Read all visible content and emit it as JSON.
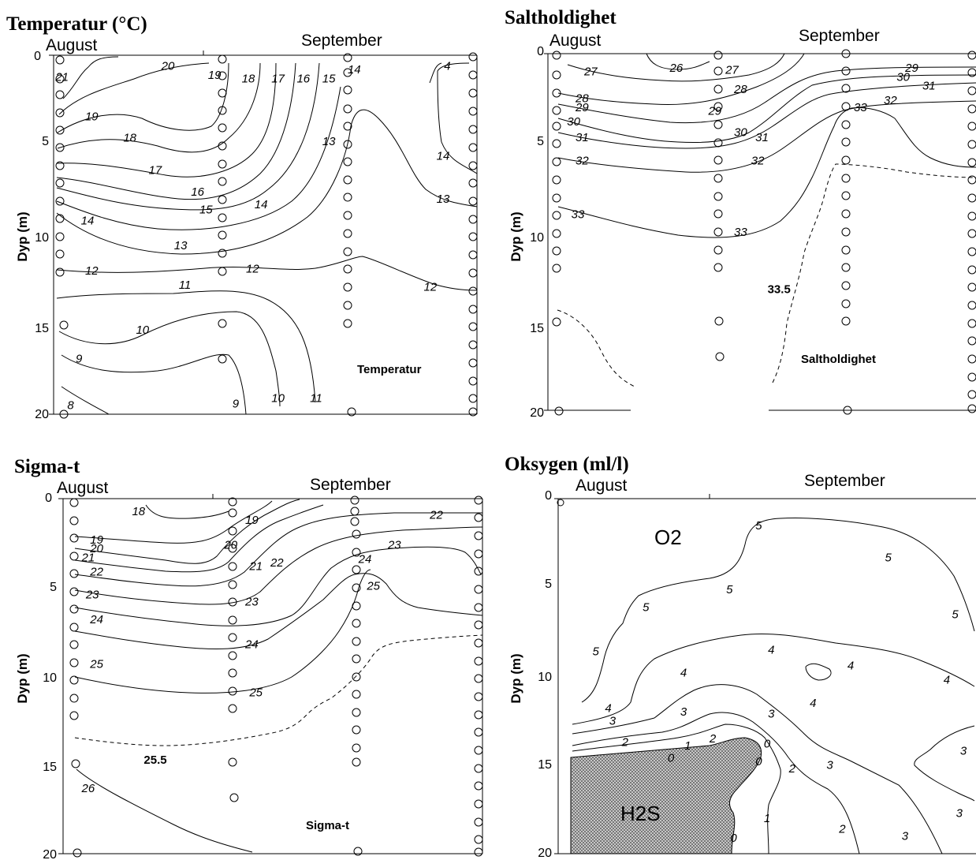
{
  "chart_data": [
    {
      "type": "contour",
      "title": "Temperatur (°C)",
      "inner_label": "Temperatur",
      "months": [
        "August",
        "September"
      ],
      "ylabel": "Dyp (m)",
      "yticks": [
        "0",
        "5",
        "10",
        "15",
        "20"
      ],
      "ylim": [
        0,
        20
      ],
      "contour_levels": [
        "21",
        "20",
        "19",
        "18",
        "17",
        "16",
        "15",
        "14",
        "13",
        "12",
        "11",
        "10",
        "9",
        "8",
        "4"
      ],
      "labels": [
        {
          "text": "21",
          "s": 0.02,
          "d": 1.2
        },
        {
          "text": "20",
          "s": 0.27,
          "d": 0.6
        },
        {
          "text": "19",
          "s": 0.09,
          "d": 3.4
        },
        {
          "text": "18",
          "s": 0.18,
          "d": 4.6
        },
        {
          "text": "17",
          "s": 0.24,
          "d": 6.4
        },
        {
          "text": "16",
          "s": 0.34,
          "d": 7.6
        },
        {
          "text": "15",
          "s": 0.36,
          "d": 8.6
        },
        {
          "text": "14",
          "s": 0.08,
          "d": 9.2
        },
        {
          "text": "14",
          "s": 0.49,
          "d": 8.3
        },
        {
          "text": "13",
          "s": 0.3,
          "d": 10.6
        },
        {
          "text": "13",
          "s": 0.65,
          "d": 4.8
        },
        {
          "text": "12",
          "s": 0.09,
          "d": 12.0
        },
        {
          "text": "12",
          "s": 0.47,
          "d": 11.9
        },
        {
          "text": "12",
          "s": 0.89,
          "d": 12.9
        },
        {
          "text": "11",
          "s": 0.31,
          "d": 12.8
        },
        {
          "text": "10",
          "s": 0.21,
          "d": 15.3
        },
        {
          "text": "9",
          "s": 0.06,
          "d": 16.9
        },
        {
          "text": "8",
          "s": 0.04,
          "d": 19.5
        },
        {
          "text": "13",
          "s": 0.92,
          "d": 8.0
        },
        {
          "text": "14",
          "s": 0.92,
          "d": 5.6
        },
        {
          "text": "4",
          "s": 0.93,
          "d": 0.6
        },
        {
          "text": "19",
          "s": 0.38,
          "d": 1.1
        },
        {
          "text": "18",
          "s": 0.46,
          "d": 1.3
        },
        {
          "text": "17",
          "s": 0.53,
          "d": 1.3
        },
        {
          "text": "16",
          "s": 0.59,
          "d": 1.3
        },
        {
          "text": "15",
          "s": 0.65,
          "d": 1.3
        },
        {
          "text": "14",
          "s": 0.71,
          "d": 0.8
        },
        {
          "text": "9",
          "s": 0.43,
          "d": 19.4
        },
        {
          "text": "10",
          "s": 0.53,
          "d": 19.1
        },
        {
          "text": "11",
          "s": 0.62,
          "d": 19.1
        }
      ]
    },
    {
      "type": "contour",
      "title": "Saltholdighet",
      "inner_label": "Saltholdighet",
      "months": [
        "August",
        "September"
      ],
      "ylabel": "Dyp (m)",
      "yticks": [
        "0",
        "5",
        "10",
        "15",
        "20"
      ],
      "ylim": [
        0,
        20
      ],
      "contour_levels": [
        "26",
        "27",
        "28",
        "29",
        "30",
        "31",
        "32",
        "33",
        "33.5"
      ],
      "labels": [
        {
          "text": "27",
          "s": 0.1,
          "d": 1.0
        },
        {
          "text": "26",
          "s": 0.3,
          "d": 0.8
        },
        {
          "text": "27",
          "s": 0.43,
          "d": 0.9
        },
        {
          "text": "28",
          "s": 0.08,
          "d": 2.5
        },
        {
          "text": "29",
          "s": 0.08,
          "d": 3.0
        },
        {
          "text": "30",
          "s": 0.06,
          "d": 3.8
        },
        {
          "text": "31",
          "s": 0.08,
          "d": 4.7
        },
        {
          "text": "32",
          "s": 0.08,
          "d": 6.0
        },
        {
          "text": "33",
          "s": 0.07,
          "d": 9.0
        },
        {
          "text": "28",
          "s": 0.45,
          "d": 2.0
        },
        {
          "text": "29",
          "s": 0.39,
          "d": 3.2
        },
        {
          "text": "30",
          "s": 0.45,
          "d": 4.4
        },
        {
          "text": "31",
          "s": 0.5,
          "d": 4.7
        },
        {
          "text": "32",
          "s": 0.49,
          "d": 6.0
        },
        {
          "text": "33",
          "s": 0.45,
          "d": 10.0
        },
        {
          "text": "29",
          "s": 0.85,
          "d": 0.8
        },
        {
          "text": "30",
          "s": 0.83,
          "d": 1.3
        },
        {
          "text": "31",
          "s": 0.89,
          "d": 1.8
        },
        {
          "text": "32",
          "s": 0.8,
          "d": 2.6
        },
        {
          "text": "33",
          "s": 0.73,
          "d": 3.0
        }
      ],
      "wide_labels": [
        {
          "text": "33.5",
          "s": 0.54,
          "d": 13.2
        }
      ]
    },
    {
      "type": "contour",
      "title": "Sigma-t",
      "inner_label": "Sigma-t",
      "months": [
        "August",
        "September"
      ],
      "ylabel": "Dyp (m)",
      "yticks": [
        "0",
        "5",
        "10",
        "15",
        "20"
      ],
      "ylim": [
        0,
        20
      ],
      "contour_levels": [
        "18",
        "19",
        "20",
        "21",
        "22",
        "23",
        "24",
        "25",
        "25.5",
        "26"
      ],
      "labels": [
        {
          "text": "18",
          "s": 0.18,
          "d": 0.7
        },
        {
          "text": "19",
          "s": 0.08,
          "d": 2.3
        },
        {
          "text": "20",
          "s": 0.08,
          "d": 2.8
        },
        {
          "text": "21",
          "s": 0.06,
          "d": 3.3
        },
        {
          "text": "22",
          "s": 0.08,
          "d": 4.1
        },
        {
          "text": "23",
          "s": 0.07,
          "d": 5.4
        },
        {
          "text": "24",
          "s": 0.08,
          "d": 6.8
        },
        {
          "text": "25",
          "s": 0.08,
          "d": 9.3
        },
        {
          "text": "26",
          "s": 0.06,
          "d": 16.3
        },
        {
          "text": "19",
          "s": 0.45,
          "d": 1.2
        },
        {
          "text": "20",
          "s": 0.4,
          "d": 2.6
        },
        {
          "text": "21",
          "s": 0.46,
          "d": 3.8
        },
        {
          "text": "22",
          "s": 0.51,
          "d": 3.6
        },
        {
          "text": "23",
          "s": 0.45,
          "d": 5.8
        },
        {
          "text": "24",
          "s": 0.45,
          "d": 8.2
        },
        {
          "text": "25",
          "s": 0.46,
          "d": 10.9
        },
        {
          "text": "22",
          "s": 0.89,
          "d": 0.9
        },
        {
          "text": "23",
          "s": 0.79,
          "d": 2.6
        },
        {
          "text": "24",
          "s": 0.72,
          "d": 3.4
        },
        {
          "text": "25",
          "s": 0.74,
          "d": 4.9
        }
      ],
      "wide_labels": [
        {
          "text": "25.5",
          "s": 0.22,
          "d": 14.7
        }
      ]
    },
    {
      "type": "contour",
      "title": "Oksygen (ml/l)",
      "months": [
        "August",
        "September"
      ],
      "ylabel": "Dyp (m)",
      "yticks": [
        "0",
        "5",
        "10",
        "15",
        "20"
      ],
      "ylim": [
        0,
        20
      ],
      "contour_levels": [
        "5",
        "4",
        "3",
        "2",
        "1",
        "0"
      ],
      "regions": [
        "O2",
        "H2S"
      ],
      "labels": [
        {
          "text": "5",
          "s": 0.48,
          "d": 1.5
        },
        {
          "text": "5",
          "s": 0.79,
          "d": 3.3
        },
        {
          "text": "5",
          "s": 0.95,
          "d": 6.5
        },
        {
          "text": "5",
          "s": 0.41,
          "d": 5.1
        },
        {
          "text": "5",
          "s": 0.21,
          "d": 6.1
        },
        {
          "text": "5",
          "s": 0.09,
          "d": 8.6
        },
        {
          "text": "4",
          "s": 0.51,
          "d": 8.5
        },
        {
          "text": "4",
          "s": 0.7,
          "d": 9.4
        },
        {
          "text": "4",
          "s": 0.93,
          "d": 10.2
        },
        {
          "text": "4",
          "s": 0.3,
          "d": 9.8
        },
        {
          "text": "4",
          "s": 0.12,
          "d": 11.8
        },
        {
          "text": "4",
          "s": 0.61,
          "d": 11.5
        },
        {
          "text": "3",
          "s": 0.13,
          "d": 12.5
        },
        {
          "text": "3",
          "s": 0.3,
          "d": 12.0
        },
        {
          "text": "3",
          "s": 0.51,
          "d": 12.1
        },
        {
          "text": "3",
          "s": 0.65,
          "d": 15.0
        },
        {
          "text": "3",
          "s": 0.83,
          "d": 19.0
        },
        {
          "text": "3",
          "s": 0.97,
          "d": 14.2
        },
        {
          "text": "3",
          "s": 0.96,
          "d": 17.7
        },
        {
          "text": "2",
          "s": 0.16,
          "d": 13.7
        },
        {
          "text": "2",
          "s": 0.37,
          "d": 13.5
        },
        {
          "text": "2",
          "s": 0.56,
          "d": 15.2
        },
        {
          "text": "2",
          "s": 0.68,
          "d": 18.6
        },
        {
          "text": "1",
          "s": 0.31,
          "d": 13.9
        },
        {
          "text": "1",
          "s": 0.5,
          "d": 18.0
        },
        {
          "text": "0",
          "s": 0.27,
          "d": 14.6
        },
        {
          "text": "0",
          "s": 0.48,
          "d": 14.8
        },
        {
          "text": "0",
          "s": 0.42,
          "d": 19.1
        },
        {
          "text": "0",
          "s": 0.5,
          "d": 13.8
        }
      ]
    }
  ]
}
